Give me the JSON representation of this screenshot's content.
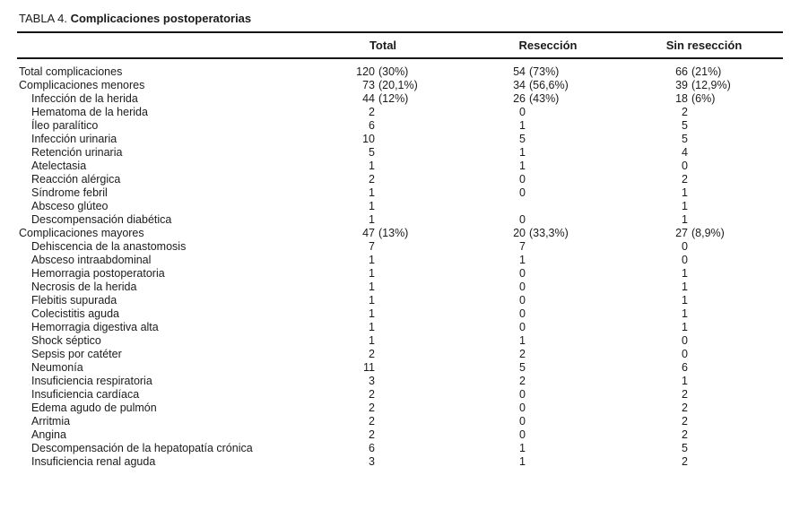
{
  "title": {
    "label": "TABLA 4.",
    "name": "Complicaciones postoperatorias"
  },
  "table": {
    "columns": [
      "Total",
      "Resección",
      "Sin resección"
    ],
    "rows": [
      {
        "label": "Total complicaciones",
        "indent": 0,
        "total": "120",
        "total_pct": "(30%)",
        "res": "54",
        "res_pct": "(73%)",
        "sin": "66",
        "sin_pct": "(21%)"
      },
      {
        "label": "Complicaciones menores",
        "indent": 0,
        "total": "73",
        "total_pct": "(20,1%)",
        "res": "34",
        "res_pct": "(56,6%)",
        "sin": "39",
        "sin_pct": "(12,9%)"
      },
      {
        "label": "Infección de la herida",
        "indent": 1,
        "total": "44",
        "total_pct": "(12%)",
        "res": "26",
        "res_pct": "(43%)",
        "sin": "18",
        "sin_pct": "(6%)"
      },
      {
        "label": "Hematoma de la herida",
        "indent": 1,
        "total": "2",
        "total_pct": "",
        "res": "0",
        "res_pct": "",
        "sin": "2",
        "sin_pct": ""
      },
      {
        "label": "Íleo paralítico",
        "indent": 1,
        "total": "6",
        "total_pct": "",
        "res": "1",
        "res_pct": "",
        "sin": "5",
        "sin_pct": ""
      },
      {
        "label": "Infección urinaria",
        "indent": 1,
        "total": "10",
        "total_pct": "",
        "res": "5",
        "res_pct": "",
        "sin": "5",
        "sin_pct": ""
      },
      {
        "label": "Retención urinaria",
        "indent": 1,
        "total": "5",
        "total_pct": "",
        "res": "1",
        "res_pct": "",
        "sin": "4",
        "sin_pct": ""
      },
      {
        "label": "Atelectasia",
        "indent": 1,
        "total": "1",
        "total_pct": "",
        "res": "1",
        "res_pct": "",
        "sin": "0",
        "sin_pct": ""
      },
      {
        "label": "Reacción alérgica",
        "indent": 1,
        "total": "2",
        "total_pct": "",
        "res": "0",
        "res_pct": "",
        "sin": "2",
        "sin_pct": ""
      },
      {
        "label": "Síndrome febril",
        "indent": 1,
        "total": "1",
        "total_pct": "",
        "res": "0",
        "res_pct": "",
        "sin": "1",
        "sin_pct": ""
      },
      {
        "label": "Absceso glúteo",
        "indent": 1,
        "total": "1",
        "total_pct": "",
        "res": "",
        "res_pct": "",
        "sin": "1",
        "sin_pct": ""
      },
      {
        "label": "Descompensación diabética",
        "indent": 1,
        "total": "1",
        "total_pct": "",
        "res": "0",
        "res_pct": "",
        "sin": "1",
        "sin_pct": ""
      },
      {
        "label": "Complicaciones mayores",
        "indent": 0,
        "total": "47",
        "total_pct": "(13%)",
        "res": "20",
        "res_pct": "(33,3%)",
        "sin": "27",
        "sin_pct": "(8,9%)"
      },
      {
        "label": "Dehiscencia de la anastomosis",
        "indent": 1,
        "total": "7",
        "total_pct": "",
        "res": "7",
        "res_pct": "",
        "sin": "0",
        "sin_pct": ""
      },
      {
        "label": "Absceso intraabdominal",
        "indent": 1,
        "total": "1",
        "total_pct": "",
        "res": "1",
        "res_pct": "",
        "sin": "0",
        "sin_pct": ""
      },
      {
        "label": "Hemorragia postoperatoria",
        "indent": 1,
        "total": "1",
        "total_pct": "",
        "res": "0",
        "res_pct": "",
        "sin": "1",
        "sin_pct": ""
      },
      {
        "label": "Necrosis de la herida",
        "indent": 1,
        "total": "1",
        "total_pct": "",
        "res": "0",
        "res_pct": "",
        "sin": "1",
        "sin_pct": ""
      },
      {
        "label": "Flebitis supurada",
        "indent": 1,
        "total": "1",
        "total_pct": "",
        "res": "0",
        "res_pct": "",
        "sin": "1",
        "sin_pct": ""
      },
      {
        "label": "Colecistitis aguda",
        "indent": 1,
        "total": "1",
        "total_pct": "",
        "res": "0",
        "res_pct": "",
        "sin": "1",
        "sin_pct": ""
      },
      {
        "label": "Hemorragia digestiva alta",
        "indent": 1,
        "total": "1",
        "total_pct": "",
        "res": "0",
        "res_pct": "",
        "sin": "1",
        "sin_pct": ""
      },
      {
        "label": "Shock séptico",
        "indent": 1,
        "total": "1",
        "total_pct": "",
        "res": "1",
        "res_pct": "",
        "sin": "0",
        "sin_pct": ""
      },
      {
        "label": "Sepsis por catéter",
        "indent": 1,
        "total": "2",
        "total_pct": "",
        "res": "2",
        "res_pct": "",
        "sin": "0",
        "sin_pct": ""
      },
      {
        "label": "Neumonía",
        "indent": 1,
        "total": "11",
        "total_pct": "",
        "res": "5",
        "res_pct": "",
        "sin": "6",
        "sin_pct": ""
      },
      {
        "label": "Insuficiencia respiratoria",
        "indent": 1,
        "total": "3",
        "total_pct": "",
        "res": "2",
        "res_pct": "",
        "sin": "1",
        "sin_pct": ""
      },
      {
        "label": "Insuficiencia cardíaca",
        "indent": 1,
        "total": "2",
        "total_pct": "",
        "res": "0",
        "res_pct": "",
        "sin": "2",
        "sin_pct": ""
      },
      {
        "label": "Edema agudo de pulmón",
        "indent": 1,
        "total": "2",
        "total_pct": "",
        "res": "0",
        "res_pct": "",
        "sin": "2",
        "sin_pct": ""
      },
      {
        "label": "Arritmia",
        "indent": 1,
        "total": "2",
        "total_pct": "",
        "res": "0",
        "res_pct": "",
        "sin": "2",
        "sin_pct": ""
      },
      {
        "label": "Angina",
        "indent": 1,
        "total": "2",
        "total_pct": "",
        "res": "0",
        "res_pct": "",
        "sin": "2",
        "sin_pct": ""
      },
      {
        "label": "Descompensación de la hepatopatía crónica",
        "indent": 1,
        "total": "6",
        "total_pct": "",
        "res": "1",
        "res_pct": "",
        "sin": "5",
        "sin_pct": ""
      },
      {
        "label": "Insuficiencia renal aguda",
        "indent": 1,
        "total": "3",
        "total_pct": "",
        "res": "1",
        "res_pct": "",
        "sin": "2",
        "sin_pct": ""
      }
    ]
  }
}
